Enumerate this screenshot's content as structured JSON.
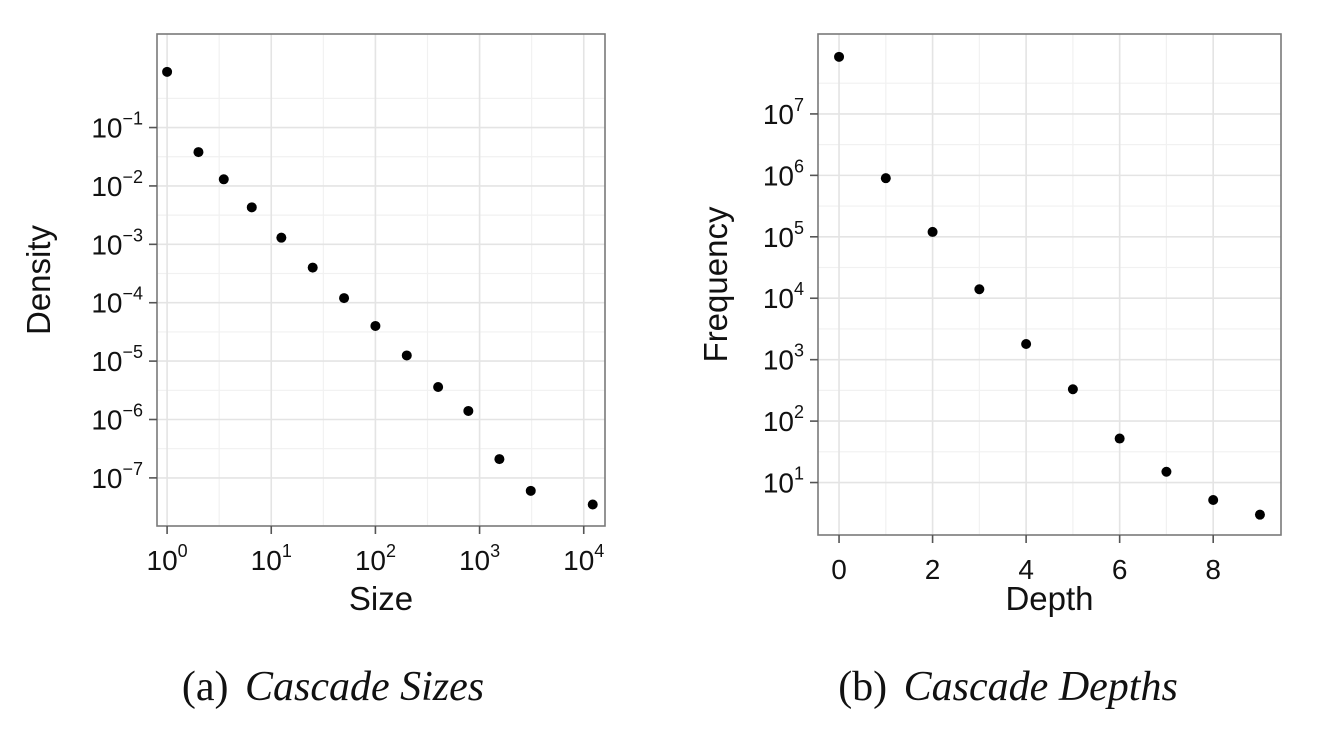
{
  "chart_data": [
    {
      "type": "scatter",
      "panel_label": "(a)",
      "caption": "Cascade Sizes",
      "xlabel": "Size",
      "ylabel": "Density",
      "xscale": "log",
      "yscale": "log",
      "xlim": [
        0.8,
        16000
      ],
      "ylim": [
        1.5e-08,
        4
      ],
      "xticks": [
        {
          "base": "10",
          "exp": "0",
          "value": 1
        },
        {
          "base": "10",
          "exp": "1",
          "value": 10
        },
        {
          "base": "10",
          "exp": "2",
          "value": 100
        },
        {
          "base": "10",
          "exp": "3",
          "value": 1000
        },
        {
          "base": "10",
          "exp": "4",
          "value": 10000
        }
      ],
      "yticks": [
        {
          "base": "10",
          "exp": "−1",
          "value": 0.1
        },
        {
          "base": "10",
          "exp": "−2",
          "value": 0.01
        },
        {
          "base": "10",
          "exp": "−3",
          "value": 0.001
        },
        {
          "base": "10",
          "exp": "−4",
          "value": 0.0001
        },
        {
          "base": "10",
          "exp": "−5",
          "value": 1e-05
        },
        {
          "base": "10",
          "exp": "−6",
          "value": 1e-06
        },
        {
          "base": "10",
          "exp": "−7",
          "value": 1e-07
        }
      ],
      "grid": true,
      "points": [
        {
          "x": 1,
          "y": 0.9
        },
        {
          "x": 2,
          "y": 0.038
        },
        {
          "x": 3.5,
          "y": 0.013
        },
        {
          "x": 6.5,
          "y": 0.0043
        },
        {
          "x": 12.5,
          "y": 0.0013
        },
        {
          "x": 25,
          "y": 0.0004
        },
        {
          "x": 50,
          "y": 0.00012
        },
        {
          "x": 100,
          "y": 4e-05
        },
        {
          "x": 200,
          "y": 1.25e-05
        },
        {
          "x": 400,
          "y": 3.6e-06
        },
        {
          "x": 780,
          "y": 1.4e-06
        },
        {
          "x": 1550,
          "y": 2.1e-07
        },
        {
          "x": 3100,
          "y": 6e-08
        },
        {
          "x": 12200,
          "y": 3.5e-08
        }
      ],
      "point_color": "#000000"
    },
    {
      "type": "scatter",
      "panel_label": "(b)",
      "caption": "Cascade Depths",
      "xlabel": "Depth",
      "ylabel": "Frequency",
      "xscale": "linear",
      "yscale": "log",
      "xlim": [
        -0.45,
        9.45
      ],
      "ylim": [
        1.4,
        200000000.0
      ],
      "xticks": [
        {
          "label": "0",
          "value": 0
        },
        {
          "label": "2",
          "value": 2
        },
        {
          "label": "4",
          "value": 4
        },
        {
          "label": "6",
          "value": 6
        },
        {
          "label": "8",
          "value": 8
        }
      ],
      "yticks": [
        {
          "base": "10",
          "exp": "7",
          "value": 10000000
        },
        {
          "base": "10",
          "exp": "6",
          "value": 1000000
        },
        {
          "base": "10",
          "exp": "5",
          "value": 100000
        },
        {
          "base": "10",
          "exp": "4",
          "value": 10000
        },
        {
          "base": "10",
          "exp": "3",
          "value": 1000
        },
        {
          "base": "10",
          "exp": "2",
          "value": 100
        },
        {
          "base": "10",
          "exp": "1",
          "value": 10
        }
      ],
      "grid": true,
      "points": [
        {
          "x": 0,
          "y": 85000000
        },
        {
          "x": 1,
          "y": 900000
        },
        {
          "x": 2,
          "y": 120000
        },
        {
          "x": 3,
          "y": 14000
        },
        {
          "x": 4,
          "y": 1800
        },
        {
          "x": 5,
          "y": 330
        },
        {
          "x": 6,
          "y": 52
        },
        {
          "x": 7,
          "y": 15
        },
        {
          "x": 8,
          "y": 5.2
        },
        {
          "x": 9,
          "y": 3.0
        }
      ],
      "point_color": "#000000"
    }
  ]
}
